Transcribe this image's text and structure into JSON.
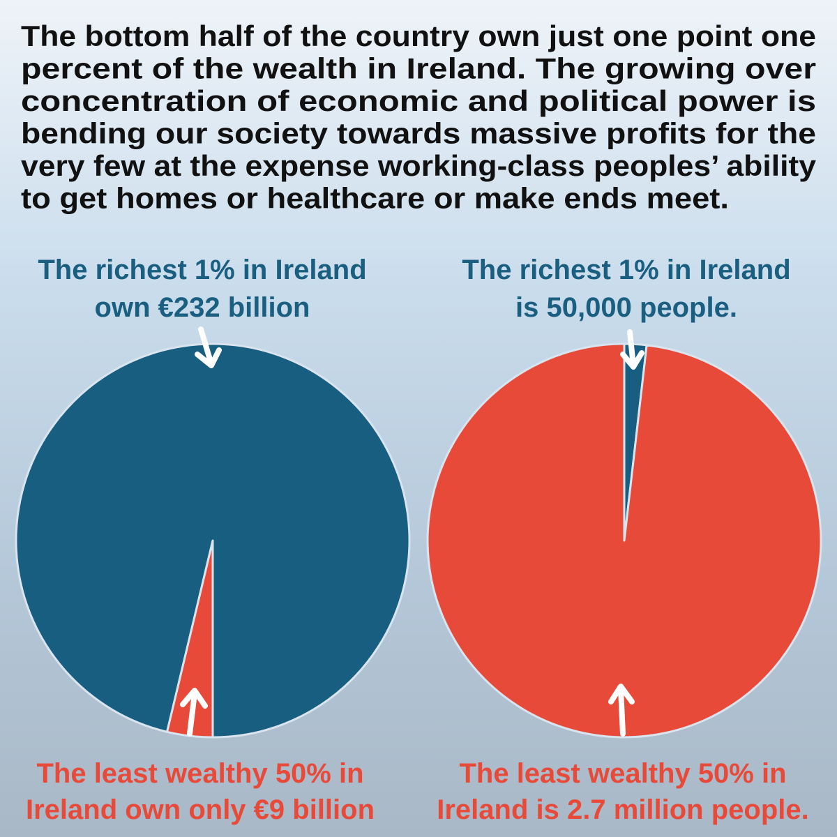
{
  "headline": [
    "The bottom half of the country own just one point one",
    "percent of the wealth in Ireland. The growing over",
    "concentration of economic and political power is",
    "bending our society towards massive profits for the",
    "very few at the expense working-class peoples’ ability",
    "to get homes or healthcare or make ends meet."
  ],
  "chart_data": [
    {
      "type": "pie",
      "values": [
        9,
        232
      ],
      "colors": [
        "#e84a3a",
        "#175e80"
      ],
      "startangle": 180,
      "annotation_top": [
        "The richest 1% in Ireland",
        "own €232 billion"
      ],
      "annotation_bottom": [
        "The least wealthy 50% in",
        "Ireland own only €9 billion"
      ]
    },
    {
      "type": "pie",
      "values": [
        50000,
        2700000
      ],
      "colors": [
        "#175e80",
        "#e84a3a"
      ],
      "startangle": 0,
      "annotation_top": [
        "The richest 1% in Ireland",
        "is 50,000 people."
      ],
      "annotation_bottom": [
        "The least wealthy 50% in",
        "Ireland is 2.7 million people."
      ]
    }
  ]
}
